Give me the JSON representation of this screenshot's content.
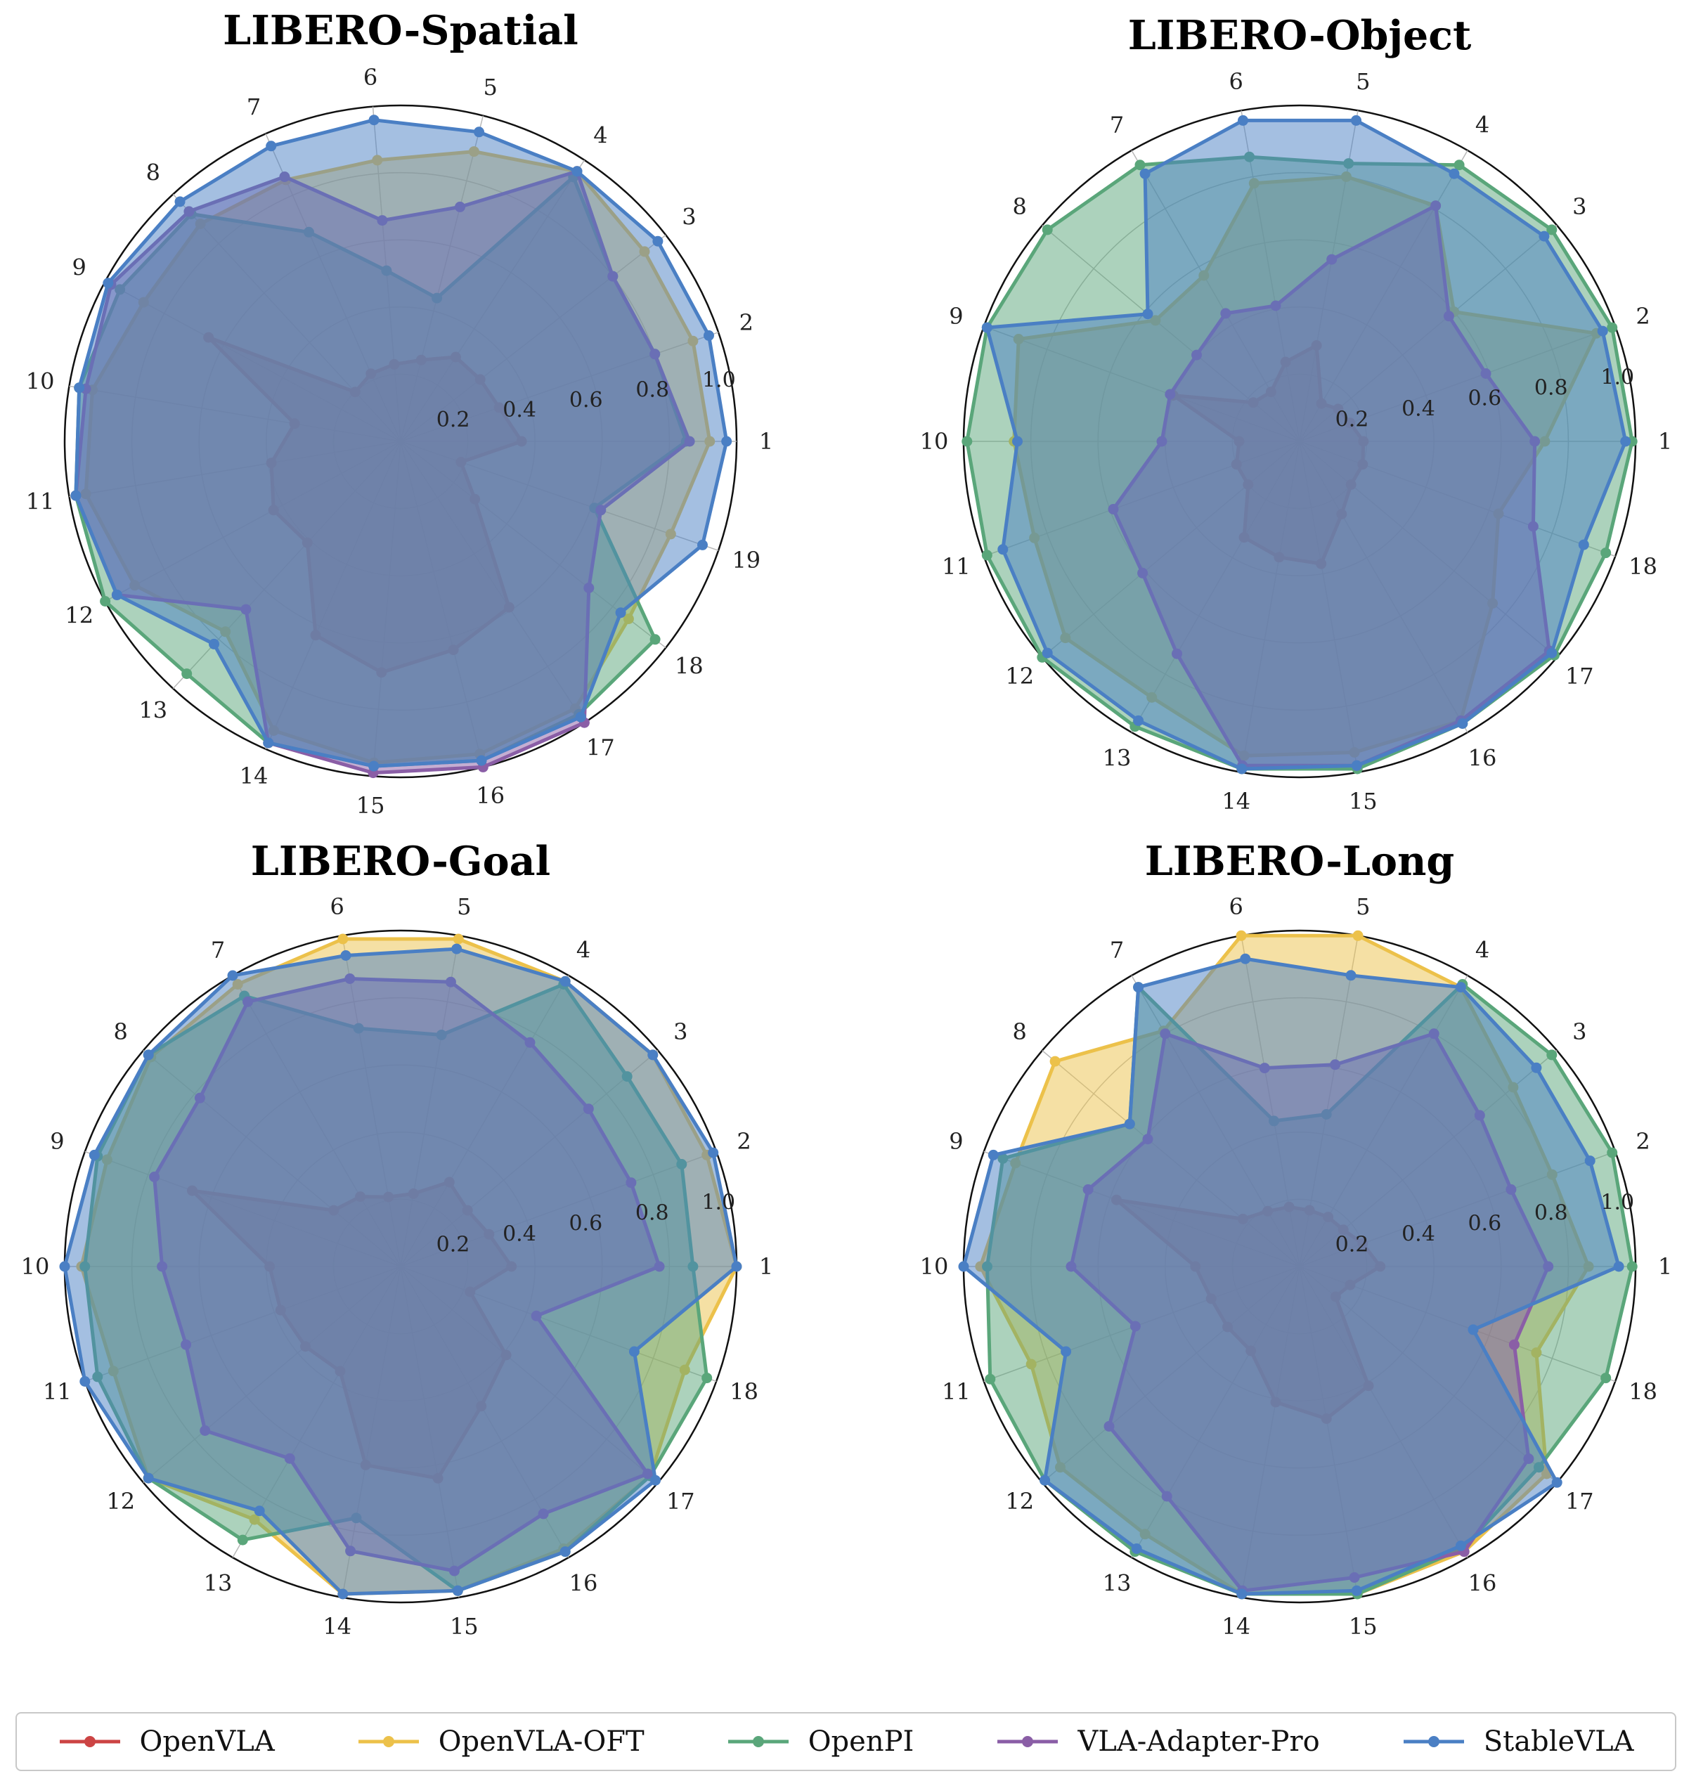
{
  "series_styles": [
    {
      "name": "OpenVLA",
      "color": "#cc4444"
    },
    {
      "name": "OpenVLA-OFT",
      "color": "#ecc14a"
    },
    {
      "name": "OpenPI",
      "color": "#5aa67a"
    },
    {
      "name": "VLA-Adapter-Pro",
      "color": "#8a5ea6"
    },
    {
      "name": "StableVLA",
      "color": "#4a7fc4"
    }
  ],
  "legend": {
    "items": [
      "OpenVLA",
      "OpenVLA-OFT",
      "OpenPI",
      "VLA-Adapter-Pro",
      "StableVLA"
    ]
  },
  "chart_data": [
    {
      "type": "radar",
      "title": "LIBERO-Spatial",
      "categories": [
        "1",
        "2",
        "3",
        "4",
        "5",
        "6",
        "7",
        "8",
        "9",
        "10",
        "11",
        "12",
        "13",
        "14",
        "15",
        "16",
        "17",
        "18",
        "19"
      ],
      "radial_ticks": [
        0.2,
        0.4,
        0.6,
        0.8,
        1.0
      ],
      "ylim": [
        0,
        1.0
      ],
      "grid": true,
      "series": [
        {
          "name": "OpenVLA",
          "values": [
            0.36,
            0.31,
            0.3,
            0.3,
            0.25,
            0.23,
            0.22,
            0.2,
            0.65,
            0.32,
            0.39,
            0.43,
            0.41,
            0.63,
            0.69,
            0.64,
            0.59,
            0.28,
            0.19
          ]
        },
        {
          "name": "OpenVLA-OFT",
          "values": [
            0.92,
            0.92,
            0.92,
            0.96,
            0.89,
            0.84,
            0.85,
            0.88,
            0.87,
            0.93,
            0.95,
            0.9,
            0.77,
            0.94,
            0.96,
            0.96,
            0.95,
            0.86,
            0.85
          ]
        },
        {
          "name": "OpenPI",
          "values": [
            0.85,
            0.8,
            0.8,
            0.94,
            0.44,
            0.51,
            0.68,
            0.92,
            0.95,
            0.97,
            0.98,
            1.0,
            0.94,
            0.98,
            0.97,
            0.98,
            0.97,
            0.96,
            0.61
          ]
        },
        {
          "name": "VLA-Adapter-Pro",
          "values": [
            0.86,
            0.8,
            0.8,
            0.96,
            0.72,
            0.66,
            0.86,
            0.93,
            0.98,
            0.95,
            0.98,
            0.96,
            0.68,
            0.98,
            0.99,
            1.0,
            1.0,
            0.71,
            0.63
          ]
        },
        {
          "name": "StableVLA",
          "values": [
            0.97,
            0.97,
            0.97,
            0.96,
            0.95,
            0.96,
            0.96,
            0.97,
            0.99,
            0.97,
            0.98,
            0.96,
            0.82,
            0.98,
            0.97,
            0.98,
            0.98,
            0.83,
            0.95
          ]
        }
      ]
    },
    {
      "type": "radar",
      "title": "LIBERO-Object",
      "categories": [
        "1",
        "2",
        "3",
        "4",
        "5",
        "6",
        "7",
        "8",
        "9",
        "10",
        "11",
        "12",
        "13",
        "14",
        "15",
        "16",
        "17",
        "18"
      ],
      "radial_ticks": [
        0.2,
        0.4,
        0.6,
        0.8,
        1.0
      ],
      "ylim": [
        0,
        1.0
      ],
      "grid": true,
      "series": [
        {
          "name": "OpenVLA",
          "values": [
            0.19,
            0.16,
            0.15,
            0.13,
            0.29,
            0.24,
            0.17,
            0.18,
            0.4,
            0.18,
            0.2,
            0.2,
            0.33,
            0.35,
            0.37,
            0.25,
            0.2,
            0.2
          ]
        },
        {
          "name": "OpenVLA-OFT",
          "values": [
            0.73,
            0.94,
            0.6,
            0.81,
            0.8,
            0.78,
            0.57,
            0.56,
            0.89,
            0.85,
            0.84,
            0.91,
            0.88,
            0.95,
            0.94,
            0.96,
            0.75,
            0.63
          ]
        },
        {
          "name": "OpenPI",
          "values": [
            0.99,
            0.99,
            0.98,
            0.95,
            0.84,
            0.86,
            0.95,
            0.98,
            0.99,
            0.99,
            0.99,
            1.0,
            0.98,
            0.99,
            0.99,
            0.97,
            0.99,
            0.97
          ]
        },
        {
          "name": "VLA-Adapter-Pro",
          "values": [
            0.7,
            0.59,
            0.58,
            0.81,
            0.55,
            0.41,
            0.44,
            0.4,
            0.41,
            0.41,
            0.59,
            0.61,
            0.73,
            0.98,
            0.98,
            0.96,
            0.97,
            0.74
          ]
        },
        {
          "name": "StableVLA",
          "values": [
            0.97,
            0.96,
            0.95,
            0.92,
            0.97,
            0.97,
            0.92,
            0.59,
            0.99,
            0.84,
            0.94,
            0.98,
            0.96,
            0.99,
            0.98,
            0.97,
            0.98,
            0.9
          ]
        }
      ]
    },
    {
      "type": "radar",
      "title": "LIBERO-Goal",
      "categories": [
        "1",
        "2",
        "3",
        "4",
        "5",
        "6",
        "7",
        "8",
        "9",
        "10",
        "11",
        "12",
        "13",
        "14",
        "15",
        "16",
        "17",
        "18"
      ],
      "radial_ticks": [
        0.2,
        0.4,
        0.6,
        0.8,
        1.0
      ],
      "ylim": [
        0,
        1.0
      ],
      "grid": true,
      "series": [
        {
          "name": "OpenVLA",
          "values": [
            0.33,
            0.28,
            0.26,
            0.29,
            0.22,
            0.21,
            0.24,
            0.26,
            0.66,
            0.39,
            0.38,
            0.37,
            0.36,
            0.6,
            0.64,
            0.48,
            0.41,
            0.22
          ]
        },
        {
          "name": "OpenVLA-OFT",
          "values": [
            1.0,
            0.97,
            0.98,
            0.98,
            0.99,
            0.99,
            0.97,
            0.97,
            0.93,
            0.95,
            0.91,
            0.98,
            0.87,
            0.99,
            0.98,
            0.97,
            0.97,
            0.9
          ]
        },
        {
          "name": "OpenPI",
          "values": [
            0.87,
            0.89,
            0.88,
            0.97,
            0.7,
            0.72,
            0.93,
            0.98,
            0.96,
            0.94,
            0.96,
            0.98,
            0.94,
            0.76,
            0.98,
            0.98,
            0.97,
            0.97
          ]
        },
        {
          "name": "VLA-Adapter-Pro",
          "values": [
            0.77,
            0.73,
            0.73,
            0.77,
            0.86,
            0.87,
            0.91,
            0.78,
            0.78,
            0.71,
            0.68,
            0.76,
            0.66,
            0.86,
            0.92,
            0.85,
            0.96,
            0.43
          ]
        },
        {
          "name": "StableVLA",
          "values": [
            1.0,
            0.99,
            0.98,
            0.98,
            0.96,
            0.94,
            1.0,
            0.98,
            0.97,
            1.0,
            1.0,
            0.98,
            0.84,
            0.99,
            0.98,
            0.98,
            0.99,
            0.74
          ]
        }
      ]
    },
    {
      "type": "radar",
      "title": "LIBERO-Long",
      "categories": [
        "1",
        "2",
        "3",
        "4",
        "5",
        "6",
        "7",
        "8",
        "9",
        "10",
        "11",
        "12",
        "13",
        "14",
        "15",
        "16",
        "17",
        "18"
      ],
      "radial_ticks": [
        0.2,
        0.4,
        0.6,
        0.8,
        1.0
      ],
      "ylim": [
        0,
        1.0
      ],
      "grid": true,
      "series": [
        {
          "name": "OpenVLA",
          "values": [
            0.24,
            0.2,
            0.17,
            0.17,
            0.17,
            0.18,
            0.19,
            0.22,
            0.58,
            0.31,
            0.28,
            0.28,
            0.29,
            0.41,
            0.46,
            0.41,
            0.14,
            0.16
          ]
        },
        {
          "name": "OpenVLA-OFT",
          "values": [
            0.86,
            0.8,
            0.83,
            0.96,
            1.0,
            1.0,
            0.81,
            0.95,
            0.9,
            0.95,
            0.85,
            0.93,
            0.92,
            0.99,
            0.99,
            0.98,
            0.96,
            0.75
          ]
        },
        {
          "name": "OpenPI",
          "values": [
            0.99,
            0.99,
            0.98,
            0.97,
            0.46,
            0.44,
            0.96,
            0.66,
            0.94,
            0.93,
            0.98,
            0.99,
            0.98,
            0.99,
            0.99,
            0.97,
            0.93,
            0.97
          ]
        },
        {
          "name": "VLA-Adapter-Pro",
          "values": [
            0.74,
            0.67,
            0.7,
            0.8,
            0.61,
            0.6,
            0.8,
            0.59,
            0.67,
            0.68,
            0.52,
            0.74,
            0.79,
            0.98,
            0.94,
            0.98,
            0.89,
            0.68
          ]
        },
        {
          "name": "StableVLA",
          "values": [
            0.95,
            0.92,
            0.92,
            0.96,
            0.88,
            0.93,
            0.96,
            0.66,
            0.97,
            1.0,
            0.74,
            0.99,
            0.97,
            0.99,
            0.98,
            0.96,
            1.0,
            0.55
          ]
        }
      ]
    }
  ]
}
